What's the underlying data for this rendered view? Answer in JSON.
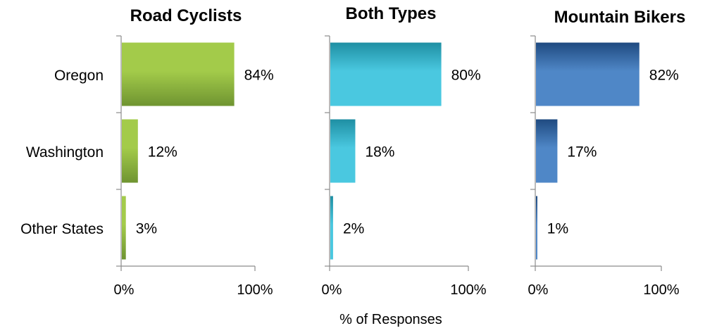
{
  "chart_data": {
    "type": "bar",
    "orientation": "horizontal",
    "categories": [
      "Oregon",
      "Washington",
      "Other States"
    ],
    "xlabel": "% of Responses",
    "xlim": [
      0,
      100
    ],
    "x_ticks": [
      "0%",
      "100%"
    ],
    "grid": false,
    "panels": [
      {
        "title": "Road Cyclists",
        "values": [
          84,
          12,
          3
        ],
        "labels": [
          "84%",
          "12%",
          "3%"
        ],
        "color_light": "#a3cb4a",
        "color_dark": "#6f9431"
      },
      {
        "title": "Both Types",
        "values": [
          80,
          18,
          2
        ],
        "labels": [
          "80%",
          "18%",
          "2%"
        ],
        "color_light": "#4ac8e0",
        "color_dark": "#1f8fa3"
      },
      {
        "title": "Mountain Bikers",
        "values": [
          82,
          17,
          1
        ],
        "labels": [
          "82%",
          "17%",
          "1%"
        ],
        "color_light": "#4f87c7",
        "color_dark": "#1f4a80"
      }
    ]
  }
}
